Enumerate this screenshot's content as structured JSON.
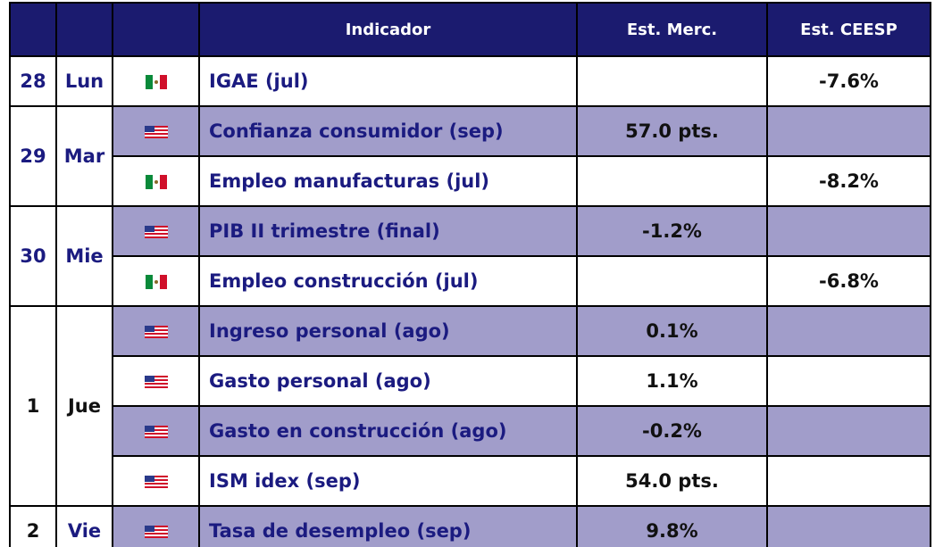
{
  "header": [
    "Indicador",
    "Est. Merc.",
    "Est. CEESP"
  ],
  "days": [
    {
      "day": "28",
      "name": "Lun",
      "rows": [
        {
          "indicator": "IGAE (jul)",
          "ceesp": "-7.6%"
        }
      ]
    },
    {
      "day": "29",
      "name": "Mar",
      "rows": [
        {
          "indicator": "Confianza consumidor (sep)",
          "merc": "57.0 pts."
        },
        {
          "indicator": "Empleo manufacturas (jul)",
          "ceesp": "-8.2%"
        }
      ]
    },
    {
      "day": "30",
      "name": "Mie",
      "rows": [
        {
          "indicator": "PIB II trimestre (final)",
          "merc": "-1.2%"
        },
        {
          "indicator": "Empleo construcción (jul)",
          "ceesp": "-6.8%"
        }
      ]
    },
    {
      "day": "1",
      "name": "Jue",
      "rows": [
        {
          "indicator": "Ingreso personal (ago)",
          "merc": "0.1%"
        },
        {
          "indicator": "Gasto personal (ago)",
          "merc": "1.1%"
        },
        {
          "indicator": "Gasto en construcción (ago)",
          "merc": "-0.2%"
        },
        {
          "indicator": "ISM idex (sep)",
          "merc": "54.0 pts."
        }
      ]
    },
    {
      "day": "2",
      "name": "Vie",
      "rows": [
        {
          "indicator": "Tasa de desempleo (sep)",
          "merc": "9.8%"
        }
      ]
    }
  ]
}
